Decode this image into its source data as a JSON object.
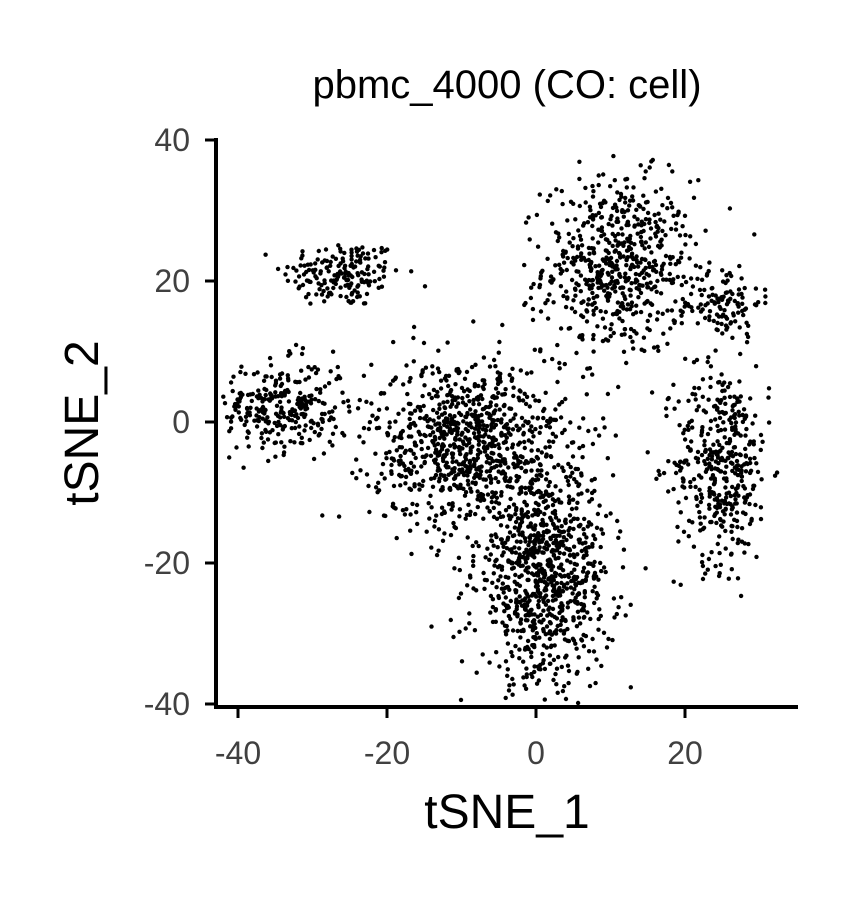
{
  "chart_data": {
    "type": "scatter",
    "title": "pbmc_4000 (CO: cell)",
    "xlabel": "tSNE_1",
    "ylabel": "tSNE_2",
    "xlim": [
      -42,
      35
    ],
    "ylim": [
      -40,
      40
    ],
    "x_ticks": [
      "-40",
      "-20",
      "0",
      "20"
    ],
    "y_ticks": [
      "40",
      "20",
      "0",
      "-20",
      "-40"
    ],
    "grid": false,
    "legend": "none",
    "point_color": "#000000",
    "clusters": [
      {
        "name": "",
        "center": [
          -26,
          21
        ],
        "spread": [
          4.0,
          2.4
        ],
        "count": 180
      },
      {
        "name": "",
        "center": [
          11,
          22
        ],
        "spread": [
          5.0,
          6.2
        ],
        "count": 620
      },
      {
        "name": "",
        "center": [
          25,
          17
        ],
        "spread": [
          2.6,
          2.8
        ],
        "count": 110
      },
      {
        "name": "",
        "center": [
          25,
          -6
        ],
        "spread": [
          3.2,
          7.0
        ],
        "count": 420
      },
      {
        "name": "",
        "center": [
          -34,
          2
        ],
        "spread": [
          4.5,
          3.2
        ],
        "count": 300
      },
      {
        "name": "",
        "center": [
          -9,
          -3
        ],
        "spread": [
          6.5,
          6.0
        ],
        "count": 900
      },
      {
        "name": "",
        "center": [
          1,
          -22
        ],
        "spread": [
          4.5,
          7.5
        ],
        "count": 900
      }
    ]
  }
}
